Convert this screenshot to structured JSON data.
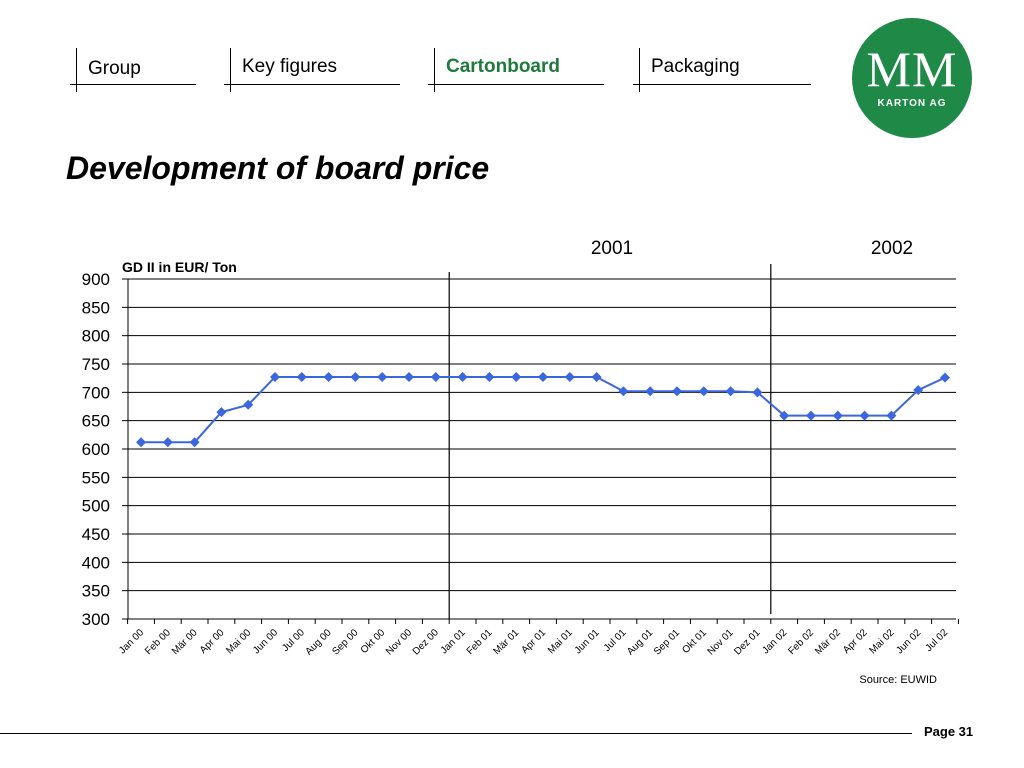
{
  "nav": {
    "tabs": [
      {
        "label": "Group",
        "active": false
      },
      {
        "label": "Key figures",
        "active": false
      },
      {
        "label": "Cartonboard",
        "active": true
      },
      {
        "label": "Packaging",
        "active": false
      }
    ]
  },
  "logo": {
    "big": "MM",
    "small": "KARTON AG",
    "color": "#1f8a47"
  },
  "page_title": "Development of board price",
  "chart_data": {
    "type": "line",
    "ylabel": "GD II in EUR/ Ton",
    "ylim": [
      300,
      900
    ],
    "yticks": [
      300,
      350,
      400,
      450,
      500,
      550,
      600,
      650,
      700,
      750,
      800,
      850,
      900
    ],
    "grid": true,
    "categories": [
      "Jan 00",
      "Feb 00",
      "Mär 00",
      "Apr 00",
      "Mai 00",
      "Jun 00",
      "Jul 00",
      "Aug 00",
      "Sep 00",
      "Okt 00",
      "Nov 00",
      "Dez 00",
      "Jan 01",
      "Feb 01",
      "Mär 01",
      "Apr 01",
      "Mai 01",
      "Jun 01",
      "Jul 01",
      "Aug 01",
      "Sep 01",
      "Okt 01",
      "Nov 01",
      "Dez 01",
      "Jan 02",
      "Feb 02",
      "Mär 02",
      "Apr 02",
      "Mai 02",
      "Jun 02",
      "Jul 02"
    ],
    "series": [
      {
        "color": "#3a66e0",
        "values": [
          612,
          612,
          612,
          665,
          678,
          727,
          727,
          727,
          727,
          727,
          727,
          727,
          727,
          727,
          727,
          727,
          727,
          727,
          702,
          702,
          702,
          702,
          702,
          700,
          659,
          659,
          659,
          659,
          659,
          704,
          726
        ]
      }
    ],
    "year_dividers": [
      {
        "after_index": 11.5,
        "label": "2001"
      },
      {
        "after_index": 23.5,
        "label": "2002"
      }
    ],
    "source": "Source: EUWID"
  },
  "footer": {
    "page": "Page 31"
  }
}
